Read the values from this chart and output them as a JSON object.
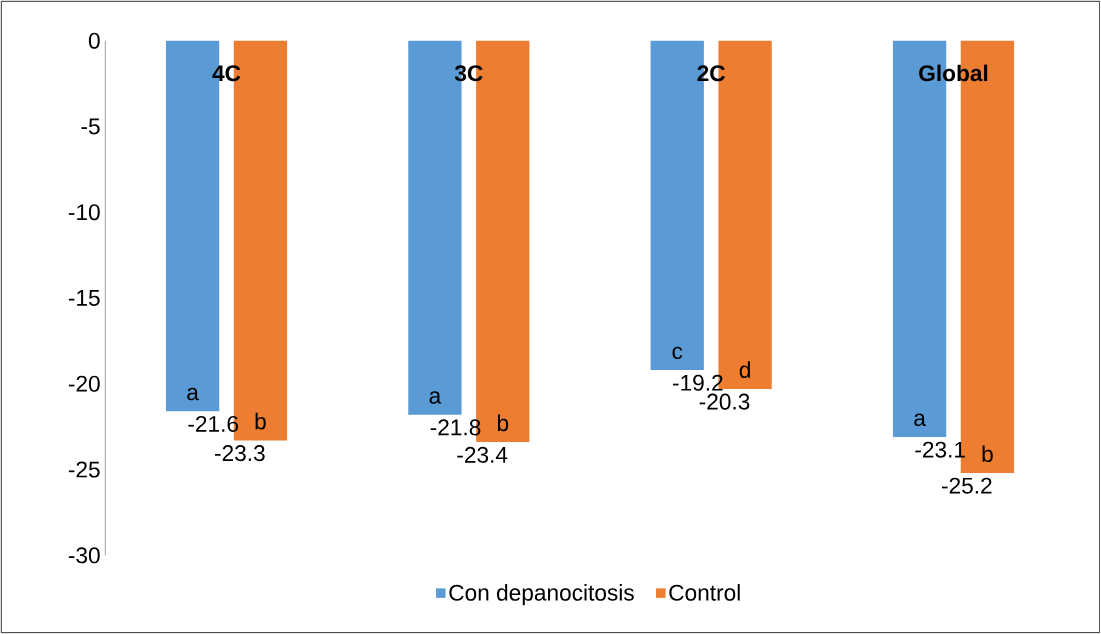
{
  "chart_data": {
    "type": "bar",
    "categories": [
      "4C",
      "3C",
      "2C",
      "Global"
    ],
    "series": [
      {
        "name": "Con depanocitosis",
        "color": "#5b9bd5",
        "values": [
          -21.6,
          -21.8,
          -19.2,
          -23.1
        ]
      },
      {
        "name": "Control",
        "color": "#ed7d31",
        "values": [
          -23.3,
          -23.4,
          -20.3,
          -25.2
        ]
      }
    ],
    "ylim": [
      -30,
      0
    ],
    "yticks": [
      -30,
      -25,
      -20,
      -15,
      -10,
      -5,
      0
    ],
    "data_labels": true,
    "grid": false,
    "legend": "bottom",
    "annotations": [
      "a",
      "b",
      "a",
      "b",
      "c",
      "d",
      "a",
      "b"
    ]
  }
}
